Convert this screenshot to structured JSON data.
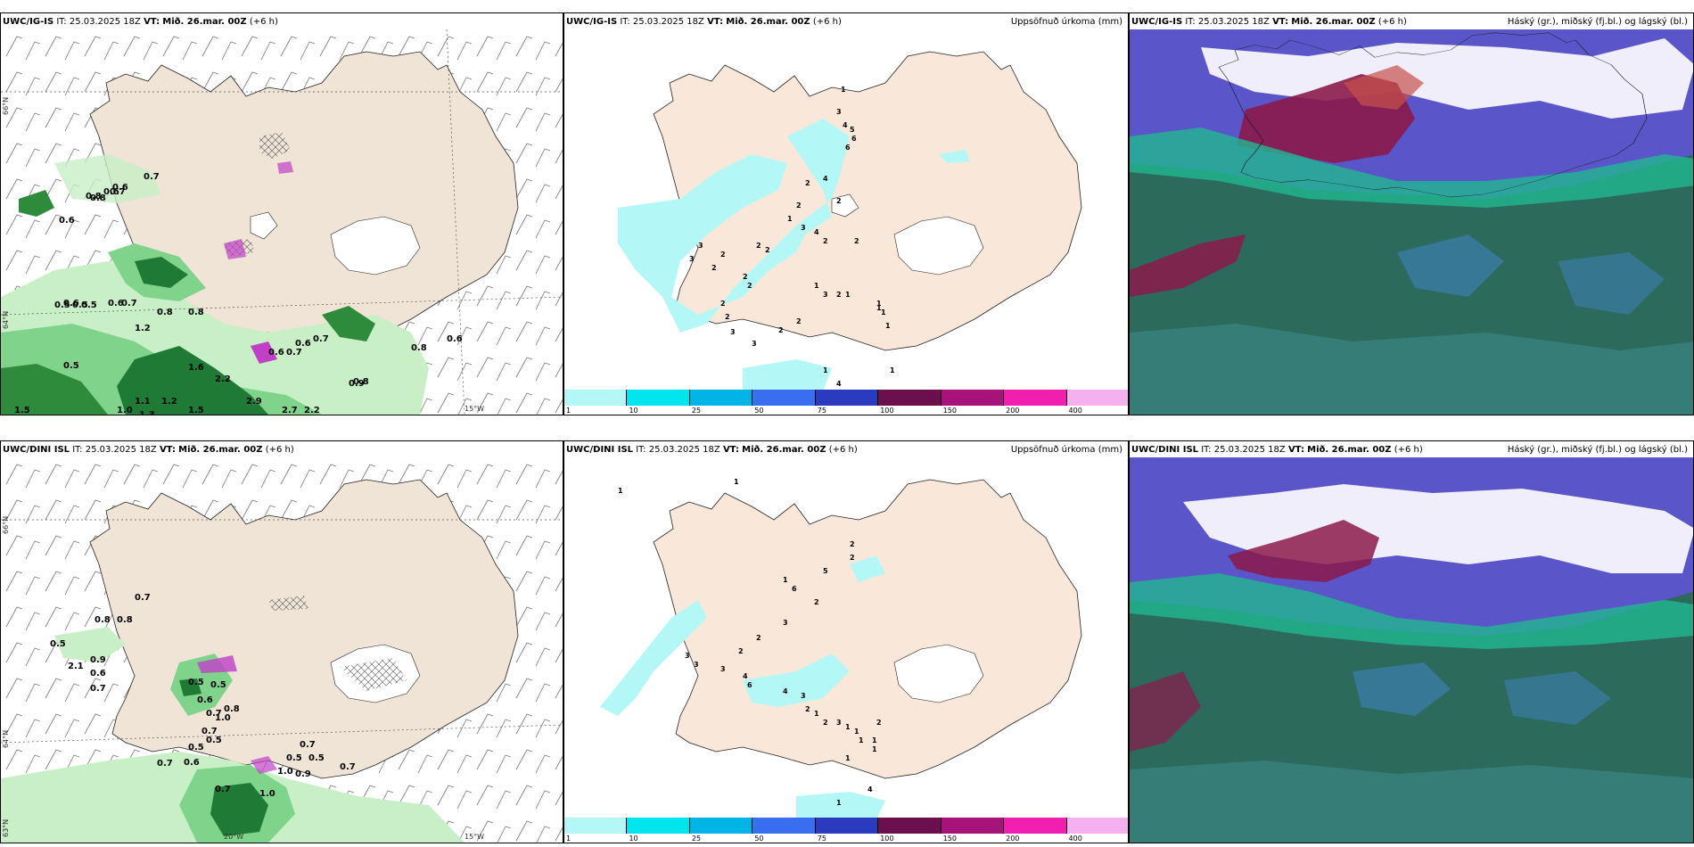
{
  "panels": {
    "p1": {
      "model": "UWC/IG-IS",
      "init": "IT: 25.03.2025 18Z",
      "vt_label": "VT:",
      "valid": "Mið. 26.mar. 00Z",
      "lead": "(+6 h)",
      "right": ""
    },
    "p2": {
      "model": "UWC/IG-IS",
      "init": "IT: 25.03.2025 18Z",
      "vt_label": "VT:",
      "valid": "Mið. 26.mar. 00Z",
      "lead": "(+6 h)",
      "right": "Uppsöfnuð úrkoma (mm)"
    },
    "p3": {
      "model": "UWC/IG-IS",
      "init": "IT: 25.03.2025 18Z",
      "vt_label": "VT:",
      "valid": "Mið. 26.mar. 00Z",
      "lead": "(+6 h)",
      "right": "Háský (gr.), miðský (fj.bl.) og lágský (bl.)"
    },
    "p4": {
      "model": "UWC/DINI ISL",
      "init": "IT: 25.03.2025 18Z",
      "vt_label": "VT:",
      "valid": "Mið. 26.mar. 00Z",
      "lead": "(+6 h)",
      "right": ""
    },
    "p5": {
      "model": "UWC/DINI ISL",
      "init": "IT: 25.03.2025 18Z",
      "vt_label": "VT:",
      "valid": "Mið. 26.mar. 00Z",
      "lead": "(+6 h)",
      "right": "Uppsöfnuð úrkoma (mm)"
    },
    "p6": {
      "model": "UWC/DINI ISL",
      "init": "IT: 25.03.2025 18Z",
      "vt_label": "VT:",
      "valid": "Mið. 26.mar. 00Z",
      "lead": "(+6 h)",
      "right": "Háský (gr.), miðský (fj.bl.) og lágský (bl.)"
    }
  },
  "axes": {
    "lat66": "66°N",
    "lat64": "64°N",
    "lat63": "63°N",
    "lon15": "15°W",
    "lon20": "20°W",
    "lon25": "25°W"
  },
  "colorbar": {
    "ticks": [
      "1",
      "10",
      "25",
      "50",
      "75",
      "100",
      "150",
      "200",
      "400"
    ],
    "colors": [
      "#b3f7f7",
      "#00e5ee",
      "#00b4e6",
      "#3a6ef0",
      "#2a3bbf",
      "#6b0f4f",
      "#a8137a",
      "#f01fb0",
      "#f5b0f0"
    ]
  },
  "p1_labels": [
    "0.7",
    "0.6",
    "0.6",
    "0.8",
    "0.6",
    "0.8",
    "0.7",
    "0.5",
    "0.6",
    "0.5",
    "0.5",
    "0.6",
    "0.7",
    "1.2",
    "0.8",
    "0.8",
    "1.5",
    "1.0",
    "0.6",
    "0.7",
    "0.6",
    "0.7",
    "0.8",
    "0.9",
    "0.6",
    "0.8",
    "0.5",
    "1.6",
    "2.2",
    "2.9",
    "2.7",
    "2.2",
    "1.5",
    "1.1",
    "1.3",
    "1.2"
  ],
  "p2_labels": [
    "1",
    "3",
    "4",
    "5",
    "6",
    "6",
    "4",
    "2",
    "2",
    "1",
    "2",
    "2",
    "3",
    "3",
    "2",
    "2",
    "2",
    "2",
    "2",
    "2",
    "3",
    "3",
    "2",
    "2",
    "1",
    "3",
    "4",
    "2",
    "1",
    "3",
    "2",
    "1",
    "2",
    "2",
    "1",
    "1",
    "1",
    "1",
    "4",
    "1"
  ],
  "p4_labels": [
    "0.7",
    "0.8",
    "0.8",
    "0.5",
    "2.1",
    "0.9",
    "0.6",
    "0.7",
    "0.5",
    "0.5",
    "0.6",
    "0.7",
    "0.8",
    "1.0",
    "0.7",
    "0.5",
    "0.5",
    "0.6",
    "0.7",
    "1.0",
    "0.9",
    "0.5",
    "0.7",
    "0.7",
    "1.0",
    "0.5",
    "0.7"
  ],
  "p5_labels": [
    "1",
    "1",
    "2",
    "1",
    "6",
    "5",
    "2",
    "2",
    "3",
    "2",
    "2",
    "3",
    "3",
    "3",
    "4",
    "6",
    "4",
    "3",
    "2",
    "1",
    "2",
    "3",
    "1",
    "1",
    "1",
    "1",
    "2",
    "1",
    "1",
    "4",
    "1"
  ]
}
